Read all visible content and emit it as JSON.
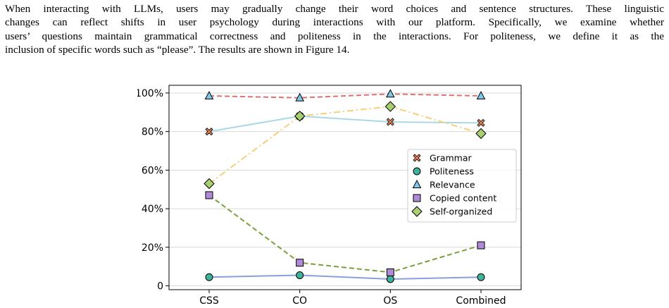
{
  "paragraph": {
    "lines": [
      "When interacting with LLMs, users may gradually change their word choices and sentence structures. These linguistic",
      "changes can reflect shifts in user psychology during interactions with our platform. Specifically, we examine whether",
      "users’ questions maintain grammatical correctness and politeness in the interactions. For politeness, we define it as the",
      "inclusion of specific words such as “please”. The results are shown in Figure 14."
    ]
  },
  "chart_data": {
    "type": "line",
    "categories": [
      "CSS",
      "CO",
      "OS",
      "Combined"
    ],
    "y_tick_labels": [
      "0",
      "20%",
      "40%",
      "60%",
      "80%",
      "100%"
    ],
    "y_ticks": [
      0,
      20,
      40,
      60,
      80,
      100
    ],
    "ylim": [
      -2,
      104
    ],
    "grid": true,
    "legend_position": "center-right",
    "series": [
      {
        "name": "Grammar",
        "values": [
          80,
          88,
          85,
          84.5
        ],
        "marker": "x-filled",
        "marker_color": "#e07b54",
        "line_color": "#aad8e6",
        "line_style": "solid"
      },
      {
        "name": "Politeness",
        "values": [
          4.5,
          5.5,
          3.5,
          4.5
        ],
        "marker": "circle",
        "marker_color": "#3db39a",
        "line_color": "#8a9fd8",
        "line_style": "solid"
      },
      {
        "name": "Relevance",
        "values": [
          98.5,
          97.5,
          99.5,
          98.5
        ],
        "marker": "triangle",
        "marker_color": "#80c8e8",
        "line_color": "#e07070",
        "line_style": "dashed"
      },
      {
        "name": "Copied content",
        "values": [
          47,
          12,
          7,
          21
        ],
        "marker": "square",
        "marker_color": "#b08ad6",
        "line_color": "#7aa03c",
        "line_style": "dashed"
      },
      {
        "name": "Self-organized",
        "values": [
          53,
          88,
          93,
          79
        ],
        "marker": "diamond",
        "marker_color": "#a8d070",
        "line_color": "#f5cf7a",
        "line_style": "dashdot"
      }
    ]
  }
}
